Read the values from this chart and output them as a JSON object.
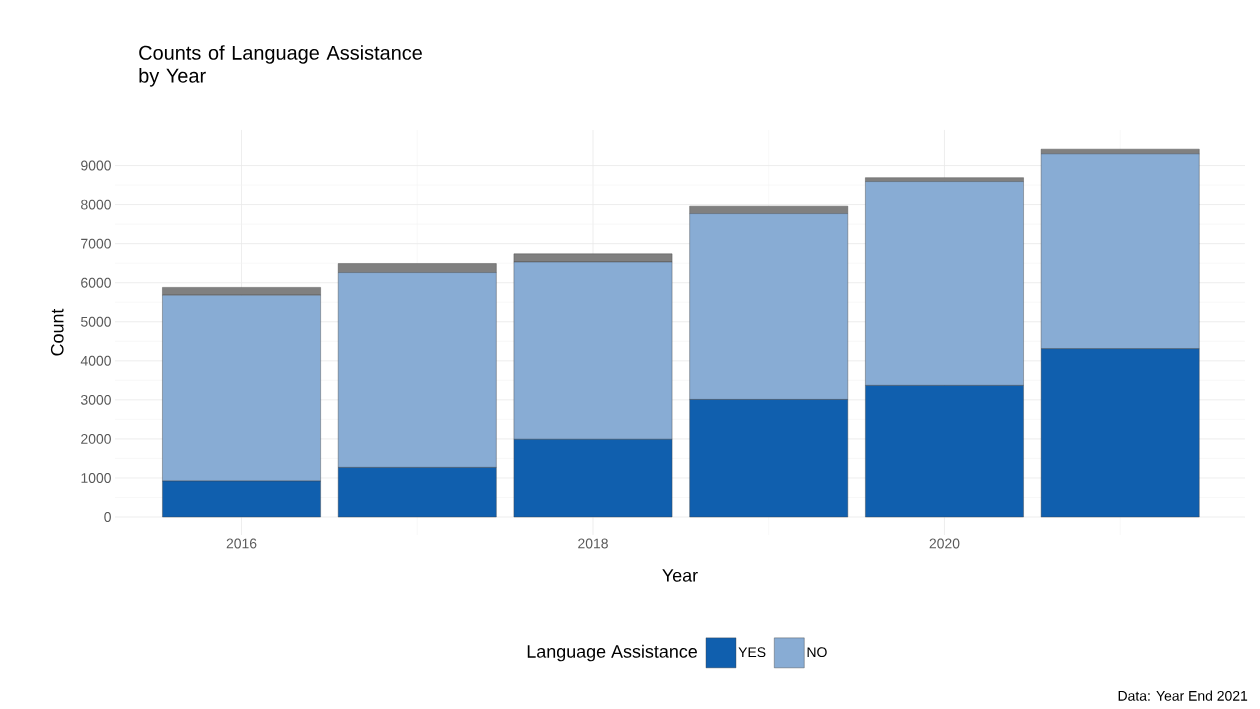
{
  "chart_data": {
    "type": "bar",
    "title": "Counts of Language Assistance by Year",
    "xlabel": "Year",
    "ylabel": "Count",
    "legend_title": "Language Assistance",
    "x": [
      2016,
      2017,
      2018,
      2019,
      2020,
      2021
    ],
    "series": [
      {
        "name": "YES",
        "color": "#105fae",
        "values": [
          920,
          1270,
          1990,
          3010,
          3370,
          4310
        ]
      },
      {
        "name": "NO",
        "color": "#88acd4",
        "values": [
          4760,
          4990,
          4540,
          4760,
          5220,
          4990
        ]
      },
      {
        "color": "#808080",
        "values": [
          200,
          230,
          210,
          190,
          100,
          120
        ]
      }
    ],
    "stacked": true,
    "xlim": [
      2015.28,
      2021.71
    ],
    "xticks": [
      2016,
      2018,
      2020
    ],
    "ylim": [
      -460,
      9910
    ],
    "yticks": [
      0,
      1000,
      2000,
      3000,
      4000,
      5000,
      6000,
      7000,
      8000,
      9000
    ],
    "grid": true,
    "legend": "bottom",
    "annotations": [
      "Data: Year End 2021"
    ]
  }
}
